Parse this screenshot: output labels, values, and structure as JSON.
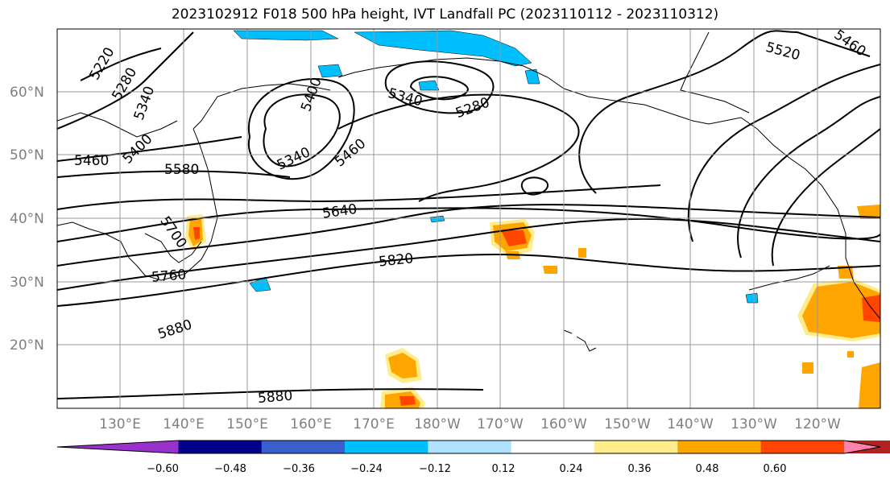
{
  "title": "2023102912 F018 500 hPa height, IVT Landfall PC (2023110112 - 2023110312)",
  "lat_labels": [
    "60°N",
    "50°N",
    "40°N",
    "30°N",
    "20°N"
  ],
  "lon_labels": [
    "130°E",
    "140°E",
    "150°E",
    "160°E",
    "170°E",
    "180°W",
    "170°W",
    "160°W",
    "150°W",
    "140°W",
    "130°W",
    "120°W"
  ],
  "contour_labels": [
    "5220",
    "5280",
    "5340",
    "5400",
    "5460",
    "5580",
    "5640",
    "5700",
    "5760",
    "5820",
    "5880",
    "5880",
    "5400",
    "5340",
    "5340",
    "5280",
    "5460",
    "5520",
    "5460"
  ],
  "colorbar": {
    "ticks": [
      "−0.60",
      "−0.48",
      "−0.36",
      "−0.24",
      "−0.12",
      "0.12",
      "0.24",
      "0.36",
      "0.48",
      "0.60"
    ],
    "colors": [
      "#9932cc",
      "#00008b",
      "#3a5fcd",
      "#00bfff",
      "#b0e2ff",
      "#ffffff",
      "#ffec8b",
      "#ffa500",
      "#ff4500",
      "#b22222",
      "#ff82ab"
    ]
  },
  "colors": {
    "contour": "#000000",
    "coast": "#000000",
    "grid": "#999999"
  }
}
